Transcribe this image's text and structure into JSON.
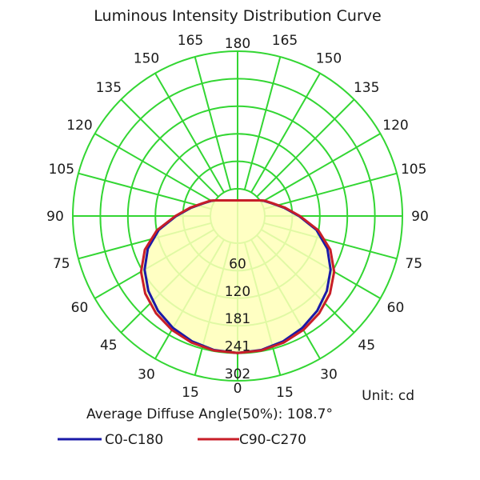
{
  "chart_data": {
    "type": "polar",
    "title": "Luminous Intensity Distribution Curve",
    "unit_label": "Unit: cd",
    "average_angle_label": "Average Diffuse Angle(50%): 108.7°",
    "angle_labels_left": [
      "0",
      "15",
      "30",
      "45",
      "60",
      "75",
      "90",
      "105",
      "120",
      "135",
      "150",
      "165",
      "180"
    ],
    "angle_labels_right": [
      "15",
      "30",
      "45",
      "60",
      "75",
      "90",
      "105",
      "120",
      "135",
      "150",
      "165"
    ],
    "radial_labels": [
      "60",
      "120",
      "181",
      "241",
      "302"
    ],
    "radial_range": [
      0,
      302
    ],
    "grid": true,
    "legend_position": "bottom-left",
    "series": [
      {
        "name": "C0-C180",
        "color": "#1a1aa8",
        "angles": [
          0,
          10,
          20,
          30,
          40,
          50,
          60,
          70,
          80,
          90,
          100,
          110,
          120,
          125
        ],
        "values": [
          241,
          239,
          233,
          224,
          212,
          196,
          176,
          150,
          116,
          75,
          44,
          21,
          7,
          0
        ]
      },
      {
        "name": "C90-C270",
        "color": "#c81e28",
        "angles": [
          0,
          10,
          20,
          30,
          40,
          50,
          60,
          70,
          80,
          90,
          100,
          110,
          120,
          125
        ],
        "values": [
          241,
          240,
          236,
          229,
          219,
          205,
          185,
          157,
          120,
          77,
          46,
          22,
          8,
          0
        ]
      }
    ]
  }
}
